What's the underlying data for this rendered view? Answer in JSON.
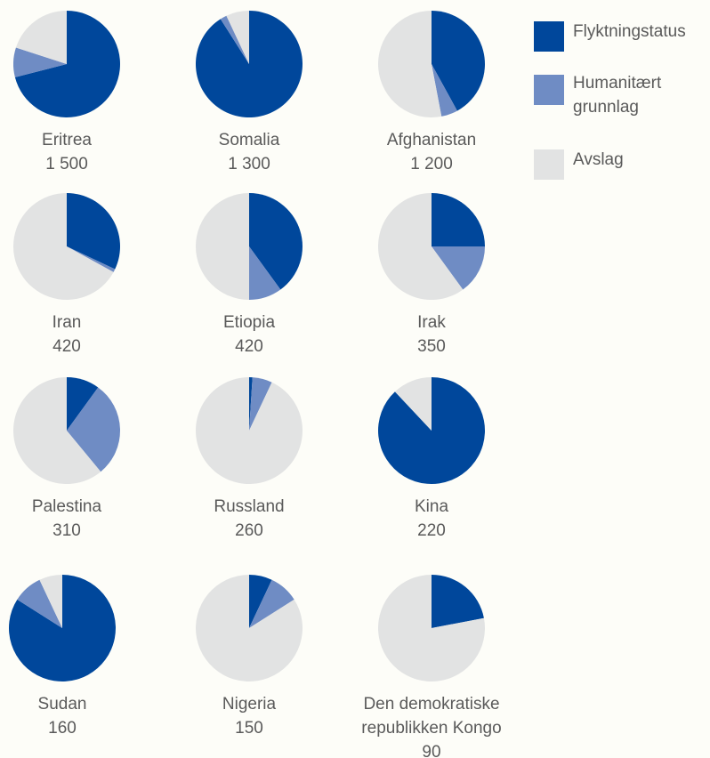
{
  "chart_data": {
    "type": "pie",
    "series": [
      {
        "name": "Flyktningstatus",
        "color": "#00479b"
      },
      {
        "name": "Humanitært grunnlag",
        "color": "#6f8cc4"
      },
      {
        "name": "Avslag",
        "color": "#e2e3e3"
      }
    ],
    "pies": [
      {
        "label": "Eritrea",
        "total": 1500,
        "total_label": "1 500",
        "values": [
          71,
          9,
          20
        ]
      },
      {
        "label": "Somalia",
        "total": 1300,
        "total_label": "1 300",
        "values": [
          91,
          2,
          7
        ]
      },
      {
        "label": "Afghanistan",
        "total": 1200,
        "total_label": "1 200",
        "values": [
          42,
          5,
          53
        ]
      },
      {
        "label": "Iran",
        "total": 420,
        "values": [
          32,
          1,
          67
        ]
      },
      {
        "label": "Etiopia",
        "total": 420,
        "values": [
          40,
          10,
          50
        ]
      },
      {
        "label": "Irak",
        "total": 350,
        "values": [
          25,
          15,
          60
        ]
      },
      {
        "label": "Palestina",
        "total": 310,
        "values": [
          10,
          29,
          61
        ]
      },
      {
        "label": "Russland",
        "total": 260,
        "values": [
          1,
          6,
          93
        ]
      },
      {
        "label": "Kina",
        "total": 220,
        "values": [
          88,
          0,
          12
        ]
      },
      {
        "label": "Sudan",
        "total": 160,
        "values": [
          84,
          9,
          7
        ]
      },
      {
        "label": "Nigeria",
        "total": 150,
        "values": [
          7,
          9,
          84
        ]
      },
      {
        "label": "Den demokratiske republikken Kongo",
        "total": 90,
        "values": [
          22,
          0,
          78
        ]
      }
    ]
  }
}
